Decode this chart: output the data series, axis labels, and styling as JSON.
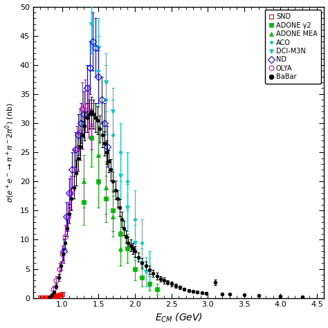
{
  "xlim": [
    0.6,
    4.6
  ],
  "ylim": [
    0,
    50
  ],
  "xticks": [
    1.0,
    1.5,
    2.0,
    2.5,
    3.0,
    3.5,
    4.0,
    4.5
  ],
  "yticks": [
    0,
    5,
    10,
    15,
    20,
    25,
    30,
    35,
    40,
    45,
    50
  ],
  "SND": {
    "color": "#ff0000",
    "marker": "s",
    "markersize": 4,
    "fillstyle": "none",
    "label": "SND",
    "x": [
      0.7,
      0.72,
      0.74,
      0.76,
      0.78,
      0.8,
      0.82,
      0.84,
      0.86,
      0.88,
      0.9,
      0.92,
      0.94,
      0.96,
      0.98,
      1.0
    ],
    "y": [
      0.05,
      0.05,
      0.05,
      0.05,
      0.05,
      0.05,
      0.05,
      0.05,
      0.1,
      0.15,
      0.2,
      0.3,
      0.4,
      0.5,
      0.6,
      0.7
    ],
    "yerr": [
      0.02,
      0.02,
      0.02,
      0.02,
      0.02,
      0.02,
      0.02,
      0.02,
      0.04,
      0.05,
      0.06,
      0.08,
      0.1,
      0.1,
      0.12,
      0.15
    ]
  },
  "ADONE_g2": {
    "color": "#00bb00",
    "marker": "s",
    "markersize": 4,
    "fillstyle": "full",
    "label": "ADONE γ2",
    "x": [
      1.3,
      1.4,
      1.5,
      1.6,
      1.7,
      1.8,
      1.9,
      2.0,
      2.1,
      2.2,
      2.3
    ],
    "y": [
      16.5,
      27.5,
      20.0,
      17.0,
      15.0,
      11.0,
      8.5,
      5.0,
      3.5,
      2.5,
      1.5
    ],
    "yerr": [
      4.0,
      5.0,
      4.5,
      4.0,
      3.5,
      3.0,
      2.5,
      2.0,
      1.5,
      1.2,
      1.0
    ]
  },
  "ADONE_MEA": {
    "color": "#00bb00",
    "marker": "^",
    "markersize": 5,
    "fillstyle": "full",
    "label": "ADONE MEA",
    "x": [
      1.3,
      1.4,
      1.5,
      1.6,
      1.7,
      1.8
    ],
    "y": [
      20.0,
      27.5,
      24.5,
      19.0,
      14.0,
      8.5
    ],
    "yerr": [
      4.5,
      5.0,
      5.0,
      4.5,
      3.5,
      3.0
    ]
  },
  "ACO": {
    "color": "#00cccc",
    "marker": ".",
    "markersize": 6,
    "fillstyle": "full",
    "label": "ACO",
    "x": [
      1.5,
      1.6,
      1.7,
      1.8,
      1.9,
      2.0,
      2.1,
      2.2
    ],
    "y": [
      39.0,
      34.0,
      28.0,
      25.0,
      20.0,
      13.5,
      9.5,
      5.0
    ],
    "yerr": [
      6.0,
      6.0,
      6.0,
      5.0,
      5.0,
      5.0,
      4.0,
      3.0
    ]
  },
  "DCI_M3N": {
    "color": "#00cccc",
    "marker": "v",
    "markersize": 5,
    "fillstyle": "full",
    "label": "DCI-M3N",
    "x": [
      1.4,
      1.5,
      1.6,
      1.7,
      1.8,
      1.9,
      2.0,
      2.1,
      2.15
    ],
    "y": [
      47.0,
      43.0,
      37.0,
      32.0,
      21.0,
      15.5,
      9.5,
      6.0,
      4.5
    ],
    "yerr": [
      5.0,
      5.0,
      5.0,
      4.0,
      4.0,
      4.0,
      3.0,
      2.5,
      2.5
    ]
  },
  "ND": {
    "color": "#0000ff",
    "marker": "D",
    "markersize": 5,
    "fillstyle": "none",
    "label": "ND",
    "x": [
      1.02,
      1.06,
      1.1,
      1.14,
      1.18,
      1.22,
      1.26,
      1.3,
      1.34,
      1.38,
      1.42,
      1.46,
      1.5,
      1.54,
      1.58,
      1.62
    ],
    "y": [
      8.0,
      14.0,
      18.0,
      22.0,
      25.5,
      28.0,
      30.0,
      31.5,
      36.0,
      39.5,
      44.0,
      43.0,
      38.0,
      34.0,
      30.0,
      26.0
    ],
    "yerr": [
      2.0,
      2.5,
      2.5,
      3.0,
      3.0,
      3.5,
      3.5,
      4.0,
      4.0,
      4.5,
      5.0,
      5.0,
      4.5,
      4.0,
      3.5,
      3.5
    ]
  },
  "OLYA": {
    "color": "#cc00cc",
    "marker": "o",
    "markersize": 5,
    "fillstyle": "none",
    "label": "OLYA",
    "x": [
      0.88,
      0.92,
      0.96,
      1.0,
      1.04,
      1.08,
      1.12,
      1.16,
      1.2,
      1.24,
      1.28,
      1.32,
      1.36,
      1.4
    ],
    "y": [
      1.5,
      3.0,
      5.0,
      7.5,
      10.5,
      14.0,
      18.0,
      22.0,
      25.5,
      28.5,
      32.5,
      33.0,
      32.0,
      29.5
    ],
    "yerr": [
      0.6,
      0.8,
      1.0,
      1.5,
      2.0,
      2.5,
      3.0,
      3.5,
      4.0,
      4.0,
      4.5,
      4.5,
      4.5,
      4.0
    ]
  },
  "BaBar": {
    "color": "#000000",
    "marker": "o",
    "markersize": 3.5,
    "fillstyle": "full",
    "label": "BaBar",
    "x": [
      0.83,
      0.86,
      0.89,
      0.92,
      0.95,
      0.98,
      1.01,
      1.04,
      1.07,
      1.1,
      1.13,
      1.16,
      1.19,
      1.22,
      1.25,
      1.28,
      1.31,
      1.34,
      1.37,
      1.4,
      1.43,
      1.46,
      1.49,
      1.52,
      1.55,
      1.58,
      1.61,
      1.64,
      1.67,
      1.7,
      1.73,
      1.76,
      1.79,
      1.82,
      1.85,
      1.88,
      1.91,
      1.94,
      1.97,
      2.0,
      2.05,
      2.1,
      2.15,
      2.2,
      2.25,
      2.3,
      2.35,
      2.4,
      2.45,
      2.5,
      2.56,
      2.62,
      2.68,
      2.74,
      2.8,
      2.86,
      2.92,
      2.98,
      3.1,
      3.2,
      3.3,
      3.5,
      3.7,
      4.0,
      4.3
    ],
    "y": [
      0.25,
      0.5,
      1.0,
      2.0,
      3.5,
      5.5,
      7.5,
      9.5,
      12.0,
      14.5,
      17.0,
      19.0,
      21.5,
      24.0,
      26.0,
      28.0,
      29.5,
      31.0,
      31.5,
      32.0,
      31.5,
      31.0,
      30.5,
      29.0,
      28.0,
      26.5,
      25.0,
      23.5,
      22.0,
      20.0,
      18.5,
      17.0,
      15.5,
      13.5,
      12.0,
      10.5,
      9.5,
      9.0,
      8.5,
      8.0,
      7.0,
      6.0,
      5.5,
      4.8,
      4.2,
      3.8,
      3.3,
      3.0,
      2.7,
      2.4,
      2.1,
      1.8,
      1.5,
      1.3,
      1.1,
      1.0,
      0.9,
      0.8,
      2.7,
      0.7,
      0.65,
      0.5,
      0.4,
      0.3,
      0.2
    ],
    "yerr": [
      0.1,
      0.15,
      0.2,
      0.4,
      0.6,
      0.8,
      1.0,
      1.2,
      1.4,
      1.6,
      1.8,
      2.0,
      2.2,
      2.2,
      2.3,
      2.4,
      2.5,
      2.5,
      2.5,
      2.5,
      2.5,
      2.5,
      2.4,
      2.3,
      2.2,
      2.1,
      2.0,
      1.9,
      1.8,
      1.7,
      1.6,
      1.5,
      1.4,
      1.3,
      1.2,
      1.1,
      1.0,
      1.0,
      1.0,
      0.9,
      0.8,
      0.8,
      0.7,
      0.7,
      0.6,
      0.6,
      0.5,
      0.5,
      0.4,
      0.4,
      0.35,
      0.3,
      0.28,
      0.25,
      0.22,
      0.2,
      0.18,
      0.17,
      0.5,
      0.15,
      0.15,
      0.12,
      0.1,
      0.09,
      0.08
    ]
  }
}
